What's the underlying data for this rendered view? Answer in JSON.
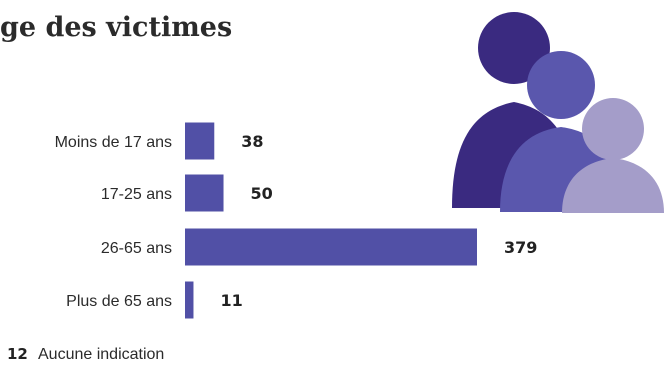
{
  "chart_data": {
    "type": "bar",
    "orientation": "horizontal",
    "title": "ge des victimes",
    "categories": [
      "Moins de 17 ans",
      "17-25 ans",
      "26-65 ans",
      "Plus de 65 ans"
    ],
    "values": [
      38,
      50,
      379,
      11
    ],
    "xlim": [
      0,
      379
    ],
    "grid": false,
    "legend": "none",
    "bar_color": "#5150a6",
    "note": {
      "value": "12",
      "label": "Aucune indication"
    }
  },
  "illustration": {
    "name": "people-group-icon",
    "colors": {
      "back": "#3a2a80",
      "middle": "#5a57ad",
      "front": "#a49dc9"
    }
  }
}
